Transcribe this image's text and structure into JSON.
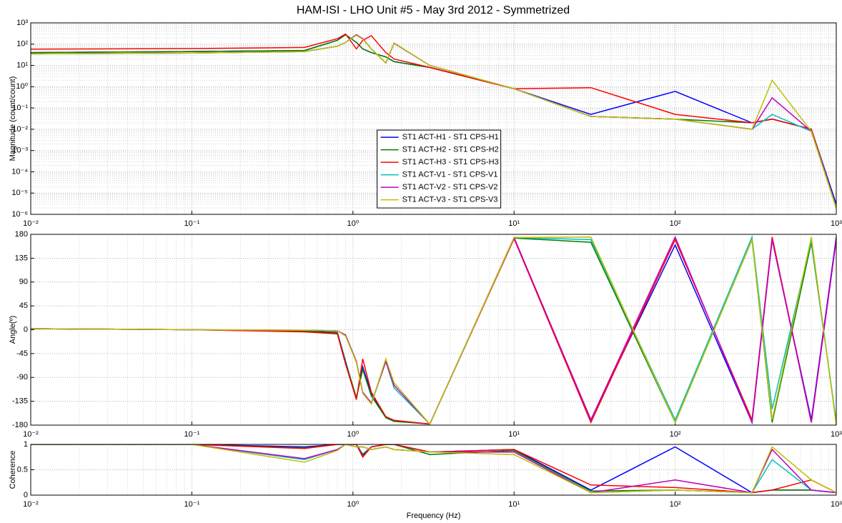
{
  "chart_data": [
    {
      "type": "line",
      "title": "HAM-ISI - LHO Unit #5 - May 3rd 2012 - Symmetrized",
      "ylabel": "Magnitude (count/count)",
      "xscale": "log",
      "yscale": "log",
      "grid": true,
      "legend": "center",
      "xlim": [
        0.01,
        1000
      ],
      "ylim": [
        1e-06,
        1000
      ],
      "xticks": [
        {
          "value": 0.01,
          "label": "10⁻²"
        },
        {
          "value": 0.1,
          "label": "10⁻¹"
        },
        {
          "value": 1,
          "label": "10⁰"
        },
        {
          "value": 10,
          "label": "10¹"
        },
        {
          "value": 100,
          "label": "10²"
        },
        {
          "value": 1000,
          "label": "10³"
        }
      ],
      "yticks": [
        {
          "value": 1e-06,
          "label": "10⁻⁶"
        },
        {
          "value": 1e-05,
          "label": "10⁻⁵"
        },
        {
          "value": 0.0001,
          "label": "10⁻⁴"
        },
        {
          "value": 0.001,
          "label": "10⁻³"
        },
        {
          "value": 0.01,
          "label": "10⁻²"
        },
        {
          "value": 0.1,
          "label": "10⁻¹"
        },
        {
          "value": 1,
          "label": "10⁰"
        },
        {
          "value": 10,
          "label": "10¹"
        },
        {
          "value": 100,
          "label": "10²"
        },
        {
          "value": 1000,
          "label": "10³"
        }
      ],
      "x": [
        0.01,
        0.1,
        0.5,
        0.8,
        0.9,
        1.05,
        1.15,
        1.3,
        1.6,
        1.8,
        3,
        10,
        30,
        100,
        300,
        400,
        700,
        1000
      ],
      "series": [
        {
          "name": "ST1 ACT-H1 - ST1 CPS-H1",
          "color": "#0000ff",
          "values": [
            40,
            45,
            50,
            150,
            280,
            120,
            60,
            40,
            25,
            15,
            8,
            0.8,
            0.05,
            0.6,
            0.02,
            0.03,
            0.01,
            3e-06
          ]
        },
        {
          "name": "ST1 ACT-H2 - ST1 CPS-H2",
          "color": "#007f00",
          "values": [
            40,
            45,
            50,
            150,
            280,
            120,
            60,
            40,
            25,
            15,
            8,
            0.8,
            0.04,
            0.03,
            0.02,
            0.03,
            0.01,
            2e-06
          ]
        },
        {
          "name": "ST1 ACT-H3 - ST1 CPS-H3",
          "color": "#ff0000",
          "values": [
            58,
            62,
            70,
            180,
            300,
            60,
            150,
            250,
            40,
            20,
            8,
            0.8,
            0.9,
            0.05,
            0.02,
            0.03,
            0.01,
            2e-06
          ]
        },
        {
          "name": "ST1 ACT-V1 - ST1 CPS-V1",
          "color": "#00bfbf",
          "values": [
            35,
            38,
            45,
            80,
            120,
            280,
            180,
            60,
            13,
            110,
            10,
            0.8,
            0.04,
            0.03,
            0.01,
            0.05,
            0.008,
            2e-06
          ]
        },
        {
          "name": "ST1 ACT-V2 - ST1 CPS-V2",
          "color": "#bf00bf",
          "values": [
            35,
            38,
            45,
            80,
            120,
            280,
            180,
            60,
            13,
            110,
            10,
            0.8,
            0.04,
            0.03,
            0.01,
            0.3,
            0.008,
            2e-06
          ]
        },
        {
          "name": "ST1 ACT-V3 - ST1 CPS-V3",
          "color": "#bfbf00",
          "values": [
            35,
            38,
            45,
            80,
            120,
            260,
            170,
            60,
            13,
            115,
            10,
            0.8,
            0.04,
            0.03,
            0.01,
            2,
            0.008,
            2e-06
          ]
        }
      ]
    },
    {
      "type": "line",
      "ylabel": "Angle(º)",
      "xscale": "log",
      "yscale": "linear",
      "grid": true,
      "xlim": [
        0.01,
        1000
      ],
      "ylim": [
        -180,
        180
      ],
      "xticks": [
        {
          "value": 0.01,
          "label": "10⁻²"
        },
        {
          "value": 0.1,
          "label": "10⁻¹"
        },
        {
          "value": 1,
          "label": "10⁰"
        },
        {
          "value": 10,
          "label": "10¹"
        },
        {
          "value": 100,
          "label": "10²"
        },
        {
          "value": 1000,
          "label": "10³"
        }
      ],
      "yticks": [
        180,
        135,
        90,
        45,
        0,
        -45,
        -90,
        -135,
        -180
      ],
      "x": [
        0.01,
        0.1,
        0.5,
        0.8,
        0.9,
        1.05,
        1.15,
        1.3,
        1.6,
        1.8,
        3,
        10,
        30,
        100,
        300,
        400,
        700,
        1000
      ],
      "series": [
        {
          "color": "#0000ff",
          "values": [
            2,
            0,
            -2,
            -5,
            -60,
            -130,
            -70,
            -120,
            -165,
            -172,
            -178,
            172,
            -170,
            160,
            -175,
            170,
            -170,
            175
          ]
        },
        {
          "color": "#007f00",
          "values": [
            2,
            0,
            -3,
            -6,
            -62,
            -128,
            -75,
            -125,
            -166,
            -173,
            -178,
            173,
            165,
            -175,
            170,
            -175,
            165,
            -175
          ]
        },
        {
          "color": "#ff0000",
          "values": [
            2,
            0,
            -4,
            -8,
            -65,
            -132,
            -55,
            -118,
            -164,
            -171,
            -178,
            172,
            -175,
            170,
            -170,
            175,
            -175,
            170
          ]
        },
        {
          "color": "#00bfbf",
          "values": [
            2,
            0,
            -1,
            -2,
            -10,
            -60,
            -120,
            -140,
            -60,
            -110,
            -178,
            174,
            170,
            -170,
            175,
            -150,
            170,
            -175
          ]
        },
        {
          "color": "#bf00bf",
          "values": [
            2,
            0,
            -1,
            -2,
            -10,
            -60,
            -118,
            -138,
            -60,
            -105,
            -178,
            174,
            -170,
            175,
            -175,
            170,
            -175,
            170
          ]
        },
        {
          "color": "#bfbf00",
          "values": [
            2,
            0,
            -1,
            -2,
            -12,
            -62,
            -120,
            -140,
            -55,
            -100,
            -178,
            174,
            175,
            -175,
            170,
            -170,
            175,
            -180
          ]
        }
      ]
    },
    {
      "type": "line",
      "ylabel": "Coherence",
      "xlabel": "Frequency (Hz)",
      "xscale": "log",
      "yscale": "linear",
      "grid": true,
      "xlim": [
        0.01,
        1000
      ],
      "ylim": [
        0,
        1
      ],
      "xticks": [
        {
          "value": 0.01,
          "label": "10⁻²"
        },
        {
          "value": 0.1,
          "label": "10⁻¹"
        },
        {
          "value": 1,
          "label": "10⁰"
        },
        {
          "value": 10,
          "label": "10¹"
        },
        {
          "value": 100,
          "label": "10²"
        },
        {
          "value": 1000,
          "label": "10³"
        }
      ],
      "yticks": [
        0,
        0.5,
        1
      ],
      "x": [
        0.01,
        0.1,
        0.5,
        0.8,
        0.9,
        1.05,
        1.15,
        1.3,
        1.6,
        1.8,
        3,
        10,
        30,
        100,
        300,
        400,
        700,
        1000
      ],
      "series": [
        {
          "color": "#0000ff",
          "values": [
            1,
            1,
            0.95,
            1,
            1,
            1,
            0.8,
            0.95,
            1,
            1,
            0.85,
            0.9,
            0.1,
            0.95,
            0.05,
            0.1,
            0.1,
            0.05
          ]
        },
        {
          "color": "#007f00",
          "values": [
            1,
            1,
            0.93,
            1,
            1,
            1,
            0.78,
            0.95,
            1,
            1,
            0.8,
            0.88,
            0.08,
            0.1,
            0.05,
            0.1,
            0.1,
            0.05
          ]
        },
        {
          "color": "#ff0000",
          "values": [
            1,
            1,
            0.92,
            1,
            1,
            1,
            0.75,
            0.95,
            1,
            1,
            0.85,
            0.9,
            0.2,
            0.15,
            0.05,
            0.1,
            0.3,
            0.05
          ]
        },
        {
          "color": "#00bfbf",
          "values": [
            1,
            1,
            0.7,
            0.9,
            1,
            0.95,
            0.95,
            0.9,
            0.95,
            0.9,
            0.85,
            0.85,
            0.05,
            0.1,
            0.05,
            0.7,
            0.1,
            0.05
          ]
        },
        {
          "color": "#bf00bf",
          "values": [
            1,
            1,
            0.72,
            0.9,
            1,
            0.95,
            0.95,
            0.9,
            0.95,
            0.9,
            0.85,
            0.85,
            0.05,
            0.3,
            0.05,
            0.9,
            0.1,
            0.05
          ]
        },
        {
          "color": "#bfbf00",
          "values": [
            1,
            1,
            0.65,
            0.88,
            1,
            0.95,
            0.95,
            0.9,
            0.95,
            0.9,
            0.85,
            0.8,
            0.05,
            0.1,
            0.05,
            0.95,
            0.3,
            0.05
          ]
        }
      ]
    }
  ]
}
